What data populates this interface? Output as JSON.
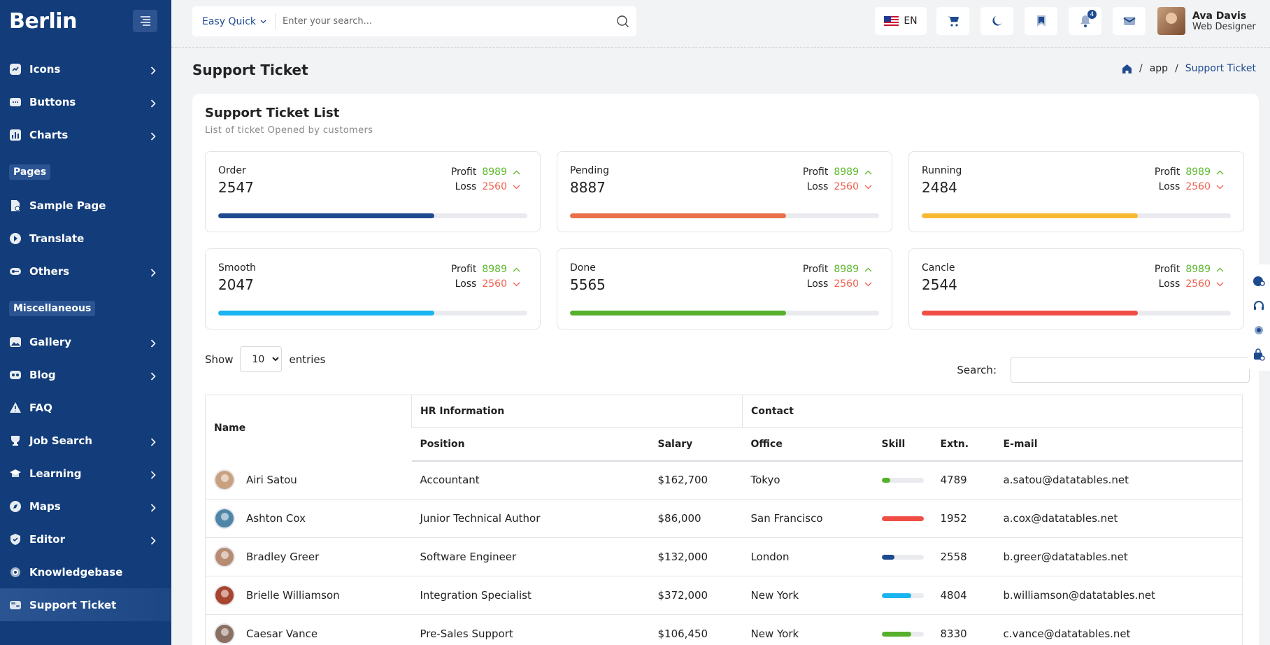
{
  "app": {
    "logo": "Berlin"
  },
  "sidebar": {
    "items_top": [
      {
        "label": "Icons",
        "icon": "icons-icon",
        "has_children": true
      },
      {
        "label": "Buttons",
        "icon": "buttons-icon",
        "has_children": true
      },
      {
        "label": "Charts",
        "icon": "charts-icon",
        "has_children": true
      }
    ],
    "section_pages": "Pages",
    "items_pages": [
      {
        "label": "Sample Page",
        "icon": "page-icon",
        "has_children": false
      },
      {
        "label": "Translate",
        "icon": "translate-icon",
        "has_children": false
      },
      {
        "label": "Others",
        "icon": "key-icon",
        "has_children": true
      }
    ],
    "section_misc": "Miscellaneous",
    "items_misc": [
      {
        "label": "Gallery",
        "icon": "gallery-icon",
        "has_children": true
      },
      {
        "label": "Blog",
        "icon": "blog-icon",
        "has_children": true
      },
      {
        "label": "FAQ",
        "icon": "faq-icon",
        "has_children": false
      },
      {
        "label": "Job Search",
        "icon": "trophy-icon",
        "has_children": true
      },
      {
        "label": "Learning",
        "icon": "learning-icon",
        "has_children": true
      },
      {
        "label": "Maps",
        "icon": "compass-icon",
        "has_children": true
      },
      {
        "label": "Editor",
        "icon": "shield-icon",
        "has_children": true
      },
      {
        "label": "Knowledgebase",
        "icon": "gear-icon",
        "has_children": false
      },
      {
        "label": "Support Ticket",
        "icon": "ticket-icon",
        "has_children": false,
        "active": true
      }
    ]
  },
  "topbar": {
    "search_type": "Easy Quick",
    "search_placeholder": "Enter your search...",
    "lang": "EN",
    "notification_count": "4",
    "user_name": "Ava Davis",
    "user_role": "Web Designer"
  },
  "page": {
    "title": "Support Ticket",
    "breadcrumb": {
      "section": "app",
      "current": "Support Ticket"
    }
  },
  "card": {
    "title": "Support Ticket List",
    "subtitle": "List of ticket Opened by customers"
  },
  "stats": [
    {
      "label": "Order",
      "value": "2547",
      "profit_label": "Profit",
      "profit": "8989",
      "loss_label": "Loss",
      "loss": "2560",
      "progress": 0.7,
      "color": "#1e4b8f"
    },
    {
      "label": "Pending",
      "value": "8887",
      "profit_label": "Profit",
      "profit": "8989",
      "loss_label": "Loss",
      "loss": "2560",
      "progress": 0.7,
      "color": "#e8704a"
    },
    {
      "label": "Running",
      "value": "2484",
      "profit_label": "Profit",
      "profit": "8989",
      "loss_label": "Loss",
      "loss": "2560",
      "progress": 0.7,
      "color": "#f8b932"
    },
    {
      "label": "Smooth",
      "value": "2047",
      "profit_label": "Profit",
      "profit": "8989",
      "loss_label": "Loss",
      "loss": "2560",
      "progress": 0.7,
      "color": "#1ab4f0"
    },
    {
      "label": "Done",
      "value": "5565",
      "profit_label": "Profit",
      "profit": "8989",
      "loss_label": "Loss",
      "loss": "2560",
      "progress": 0.7,
      "color": "#57b02c"
    },
    {
      "label": "Cancle",
      "value": "2544",
      "profit_label": "Profit",
      "profit": "8989",
      "loss_label": "Loss",
      "loss": "2560",
      "progress": 0.7,
      "color": "#f04e45"
    }
  ],
  "table_controls": {
    "show_label": "Show",
    "entries_value": "10",
    "entries_label": "entries",
    "search_label": "Search:"
  },
  "table": {
    "group_headers": {
      "name": "Name",
      "hr": "HR Information",
      "contact": "Contact"
    },
    "columns": [
      "Position",
      "Salary",
      "Office",
      "Skill",
      "Extn.",
      "E-mail"
    ],
    "rows": [
      {
        "name": "Airi Satou",
        "position": "Accountant",
        "salary": "$162,700",
        "office": "Tokyo",
        "skill": 0.2,
        "skill_color": "#57b02c",
        "extn": "4789",
        "email": "a.satou@datatables.net",
        "avatar_color": "#c9a17f"
      },
      {
        "name": "Ashton Cox",
        "position": "Junior Technical Author",
        "salary": "$86,000",
        "office": "San Francisco",
        "skill": 1.0,
        "skill_color": "#f04e45",
        "extn": "1952",
        "email": "a.cox@datatables.net",
        "avatar_color": "#4f86a8"
      },
      {
        "name": "Bradley Greer",
        "position": "Software Engineer",
        "salary": "$132,000",
        "office": "London",
        "skill": 0.3,
        "skill_color": "#1e4b8f",
        "extn": "2558",
        "email": "b.greer@datatables.net",
        "avatar_color": "#b88c73"
      },
      {
        "name": "Brielle Williamson",
        "position": "Integration Specialist",
        "salary": "$372,000",
        "office": "New York",
        "skill": 0.7,
        "skill_color": "#1ab4f0",
        "extn": "4804",
        "email": "b.williamson@datatables.net",
        "avatar_color": "#a8452f"
      },
      {
        "name": "Caesar Vance",
        "position": "Pre-Sales Support",
        "salary": "$106,450",
        "office": "New York",
        "skill": 0.7,
        "skill_color": "#57b02c",
        "extn": "8330",
        "email": "c.vance@datatables.net",
        "avatar_color": "#8a6f62"
      }
    ]
  }
}
